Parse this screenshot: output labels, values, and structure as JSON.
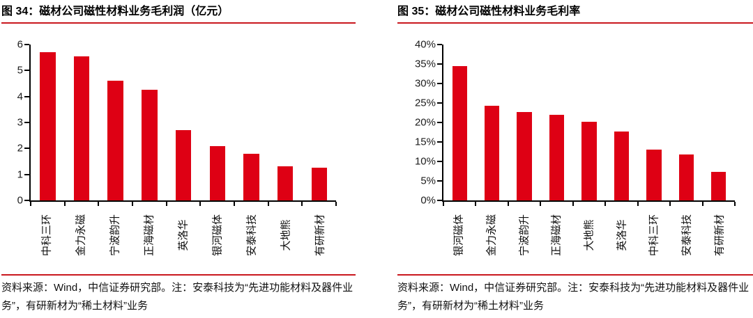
{
  "colors": {
    "bar": "#DE0014",
    "rule": "#C9171E",
    "axis": "#000000",
    "background": "#FFFFFF"
  },
  "panels": [
    {
      "title": "图 34：磁材公司磁性材料业务毛利润（亿元）",
      "source_note": "资料来源：Wind，中信证券研究部。注：安泰科技为“先进功能材料及器件业务”，有研新材为“稀土材料”业务"
    },
    {
      "title": "图 35：磁材公司磁性材料业务毛利率",
      "source_note": "资料来源：Wind，中信证券研究部。注：安泰科技为“先进功能材料及器件业务”，有研新材为“稀土材料”业务"
    }
  ],
  "chart_data": [
    {
      "type": "bar",
      "title": "图 34：磁材公司磁性材料业务毛利润（亿元）",
      "categories": [
        "中科三环",
        "金力永磁",
        "宁波韵升",
        "正海磁材",
        "英洛华",
        "银河磁体",
        "安泰科技",
        "大地熊",
        "有研新材"
      ],
      "values": [
        5.7,
        5.55,
        4.6,
        4.25,
        2.7,
        2.1,
        1.8,
        1.3,
        1.25
      ],
      "unit": "亿元",
      "ylim": [
        0,
        6
      ],
      "ytick_step": 1,
      "ytick_format": "number",
      "grid": false,
      "legend": false,
      "bar_color": "#DE0014"
    },
    {
      "type": "bar",
      "title": "图 35：磁材公司磁性材料业务毛利率",
      "categories": [
        "银河磁体",
        "金力永磁",
        "宁波韵升",
        "正海磁材",
        "大地熊",
        "英洛华",
        "中科三环",
        "安泰科技",
        "有研新材"
      ],
      "values": [
        34.5,
        24.3,
        22.7,
        22.0,
        20.1,
        17.6,
        13.0,
        11.7,
        7.4
      ],
      "unit": "%",
      "ylim": [
        0,
        40
      ],
      "ytick_step": 5,
      "ytick_format": "percent",
      "grid": false,
      "legend": false,
      "bar_color": "#DE0014"
    }
  ]
}
